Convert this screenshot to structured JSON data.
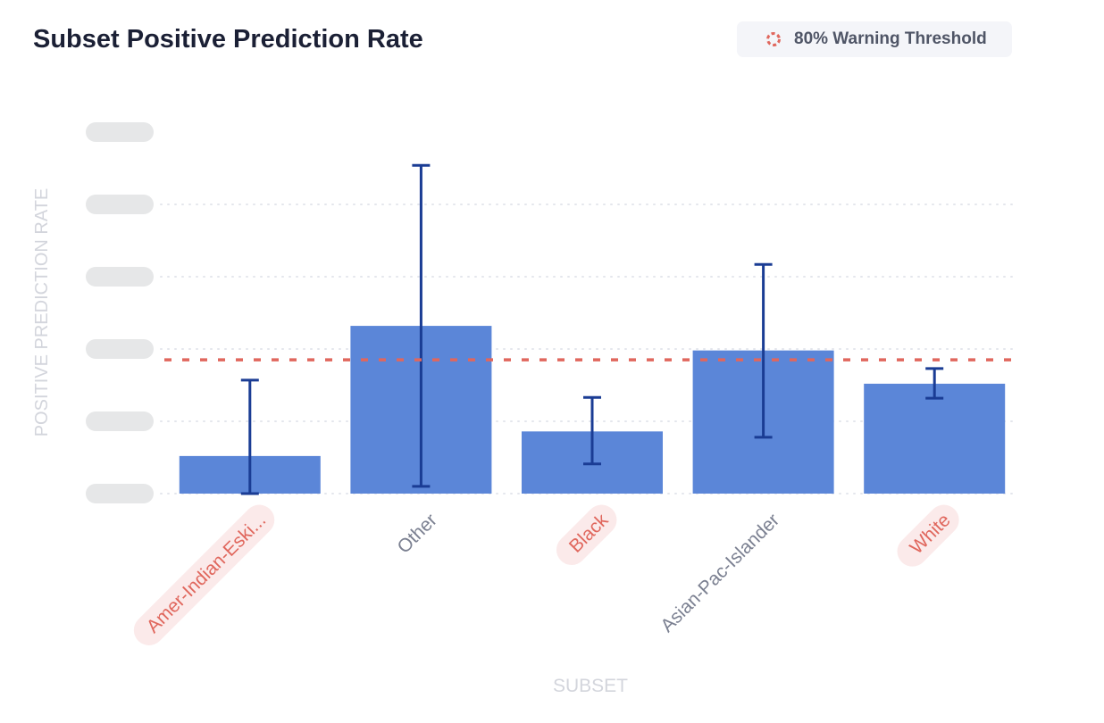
{
  "chart_data": {
    "type": "bar",
    "title": "Subset Positive Prediction Rate",
    "xlabel": "SUBSET",
    "ylabel": "POSITIVE PREDICTION RATE",
    "y_tick_labels_redacted": true,
    "ylim": [
      0,
      0.5
    ],
    "y_ticks": [
      0,
      0.1,
      0.2,
      0.3,
      0.4,
      0.5
    ],
    "grid": "horizontal dotted",
    "categories": [
      "Amer-Indian-Eski...",
      "Other",
      "Black",
      "Asian-Pac-Islander",
      "White"
    ],
    "highlighted": [
      true,
      false,
      true,
      false,
      true
    ],
    "values": [
      0.052,
      0.232,
      0.086,
      0.198,
      0.152
    ],
    "error_low": [
      0.0,
      0.01,
      0.041,
      0.078,
      0.132
    ],
    "error_high": [
      0.157,
      0.454,
      0.133,
      0.317,
      0.173
    ],
    "threshold": {
      "label": "80% Warning Threshold",
      "value": 0.185
    },
    "legend_position": "top-right",
    "colors": {
      "bar": "#5b86d8",
      "error_bar": "#1a3c94",
      "threshold": "#e0675d",
      "highlight_text": "#e0675d",
      "highlight_bg": "#fbeaea",
      "label_text": "#7b8091"
    }
  }
}
